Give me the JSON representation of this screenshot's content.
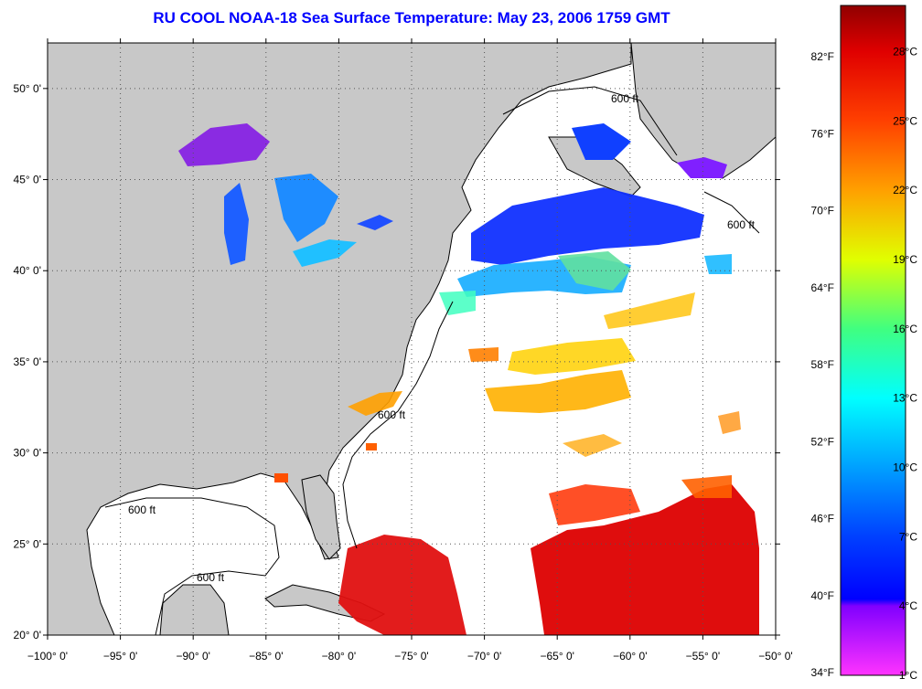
{
  "title": "RU COOL  NOAA-18  Sea Surface Temperature:  May 23, 2006 1759 GMT",
  "map": {
    "lon_min": -100,
    "lon_max": -50,
    "lat_min": 20,
    "lat_max": 52.5,
    "lon_ticks": [
      {
        "value": -100,
        "label": "−100° 0'"
      },
      {
        "value": -95,
        "label": "−95° 0'"
      },
      {
        "value": -90,
        "label": "−90° 0'"
      },
      {
        "value": -85,
        "label": "−85° 0'"
      },
      {
        "value": -80,
        "label": "−80° 0'"
      },
      {
        "value": -75,
        "label": "−75° 0'"
      },
      {
        "value": -70,
        "label": "−70° 0'"
      },
      {
        "value": -65,
        "label": "−65° 0'"
      },
      {
        "value": -60,
        "label": "−60° 0'"
      },
      {
        "value": -55,
        "label": "−55° 0'"
      },
      {
        "value": -50,
        "label": "−50° 0'"
      }
    ],
    "lat_ticks": [
      {
        "value": 20,
        "label": "20° 0'"
      },
      {
        "value": 25,
        "label": "25° 0'"
      },
      {
        "value": 30,
        "label": "30° 0'"
      },
      {
        "value": 35,
        "label": "35° 0'"
      },
      {
        "value": 40,
        "label": "40° 0'"
      },
      {
        "value": 45,
        "label": "45° 0'"
      },
      {
        "value": 50,
        "label": "50° 0'"
      }
    ],
    "contour_label": "600 ft",
    "colors": {
      "land": "#c8c8c8",
      "ocean": "#ffffff",
      "grid": "#555555"
    }
  },
  "colorbar": {
    "min_c": 1,
    "max_c": 30,
    "celsius_labels": [
      "1°C",
      "4°C",
      "7°C",
      "10°C",
      "13°C",
      "16°C",
      "19°C",
      "22°C",
      "25°C",
      "28°C"
    ],
    "celsius_values": [
      1,
      4,
      7,
      10,
      13,
      16,
      19,
      22,
      25,
      28
    ],
    "fahrenheit_labels": [
      "34°F",
      "40°F",
      "46°F",
      "52°F",
      "58°F",
      "64°F",
      "70°F",
      "76°F",
      "82°F"
    ],
    "fahrenheit_values": [
      34,
      40,
      46,
      52,
      58,
      64,
      70,
      76,
      82
    ],
    "gradient": [
      {
        "c": 1,
        "color": "#ff33ff"
      },
      {
        "c": 4,
        "color": "#8000ff"
      },
      {
        "c": 4.3,
        "color": "#0000ff"
      },
      {
        "c": 7,
        "color": "#0040ff"
      },
      {
        "c": 10,
        "color": "#00a0ff"
      },
      {
        "c": 13,
        "color": "#00ffff"
      },
      {
        "c": 16,
        "color": "#40ff80"
      },
      {
        "c": 19,
        "color": "#e0ff00"
      },
      {
        "c": 22,
        "color": "#ffa000"
      },
      {
        "c": 25,
        "color": "#ff4000"
      },
      {
        "c": 28,
        "color": "#e00000"
      },
      {
        "c": 30,
        "color": "#900000"
      }
    ]
  }
}
